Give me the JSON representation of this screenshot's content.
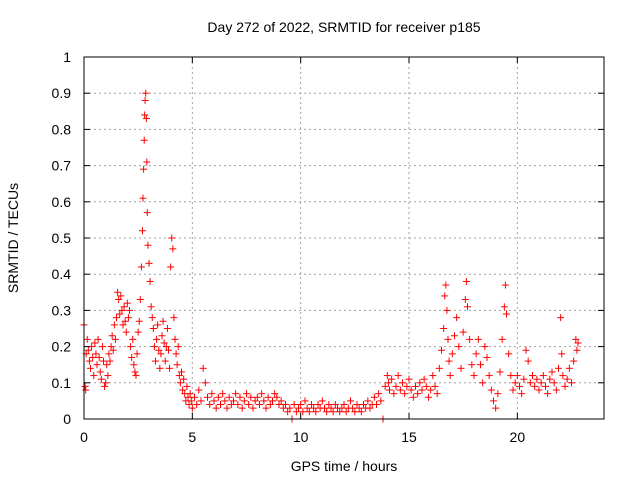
{
  "chart_data": {
    "type": "scatter",
    "title": "Day 272 of 2022, SRMTID for receiver p185",
    "xlabel": "GPS time / hours",
    "ylabel": "SRMTID / TECUs",
    "xlim": [
      0,
      24
    ],
    "ylim": [
      0,
      1
    ],
    "xticks": [
      0,
      5,
      10,
      15,
      20
    ],
    "xtick_labels": [
      "0",
      "5",
      "10",
      "15",
      "20"
    ],
    "yticks": [
      0,
      0.1,
      0.2,
      0.3,
      0.4,
      0.5,
      0.6,
      0.7,
      0.8,
      0.9,
      1
    ],
    "ytick_labels": [
      "0",
      "0.1",
      "0.2",
      "0.3",
      "0.4",
      "0.5",
      "0.6",
      "0.7",
      "0.8",
      "0.9",
      "1"
    ],
    "grid": true,
    "marker": "plus",
    "color": "#ff0000",
    "series": [
      {
        "name": "SRMTID",
        "points": [
          [
            0.0,
            0.26
          ],
          [
            0.05,
            0.09
          ],
          [
            0.08,
            0.08
          ],
          [
            0.1,
            0.18
          ],
          [
            0.15,
            0.22
          ],
          [
            0.2,
            0.19
          ],
          [
            0.25,
            0.16
          ],
          [
            0.3,
            0.14
          ],
          [
            0.35,
            0.2
          ],
          [
            0.4,
            0.17
          ],
          [
            0.45,
            0.12
          ],
          [
            0.5,
            0.21
          ],
          [
            0.55,
            0.18
          ],
          [
            0.6,
            0.15
          ],
          [
            0.65,
            0.22
          ],
          [
            0.7,
            0.17
          ],
          [
            0.75,
            0.13
          ],
          [
            0.8,
            0.11
          ],
          [
            0.85,
            0.2
          ],
          [
            0.9,
            0.16
          ],
          [
            0.95,
            0.09
          ],
          [
            1.0,
            0.1
          ],
          [
            1.05,
            0.15
          ],
          [
            1.1,
            0.12
          ],
          [
            1.15,
            0.18
          ],
          [
            1.2,
            0.16
          ],
          [
            1.25,
            0.2
          ],
          [
            1.3,
            0.23
          ],
          [
            1.35,
            0.19
          ],
          [
            1.4,
            0.26
          ],
          [
            1.45,
            0.22
          ],
          [
            1.5,
            0.28
          ],
          [
            1.55,
            0.35
          ],
          [
            1.6,
            0.33
          ],
          [
            1.65,
            0.29
          ],
          [
            1.7,
            0.34
          ],
          [
            1.75,
            0.3
          ],
          [
            1.8,
            0.26
          ],
          [
            1.85,
            0.31
          ],
          [
            1.9,
            0.27
          ],
          [
            1.95,
            0.24
          ],
          [
            2.0,
            0.32
          ],
          [
            2.05,
            0.28
          ],
          [
            2.1,
            0.3
          ],
          [
            2.15,
            0.2
          ],
          [
            2.2,
            0.17
          ],
          [
            2.25,
            0.22
          ],
          [
            2.3,
            0.15
          ],
          [
            2.35,
            0.13
          ],
          [
            2.4,
            0.12
          ],
          [
            2.45,
            0.18
          ],
          [
            2.5,
            0.24
          ],
          [
            2.55,
            0.27
          ],
          [
            2.6,
            0.33
          ],
          [
            2.65,
            0.42
          ],
          [
            2.7,
            0.52
          ],
          [
            2.72,
            0.61
          ],
          [
            2.75,
            0.69
          ],
          [
            2.78,
            0.77
          ],
          [
            2.8,
            0.84
          ],
          [
            2.82,
            0.88
          ],
          [
            2.85,
            0.9
          ],
          [
            2.88,
            0.83
          ],
          [
            2.9,
            0.71
          ],
          [
            2.92,
            0.57
          ],
          [
            2.95,
            0.48
          ],
          [
            3.0,
            0.43
          ],
          [
            3.05,
            0.38
          ],
          [
            3.1,
            0.31
          ],
          [
            3.15,
            0.28
          ],
          [
            3.2,
            0.25
          ],
          [
            3.25,
            0.2
          ],
          [
            3.3,
            0.16
          ],
          [
            3.35,
            0.22
          ],
          [
            3.4,
            0.26
          ],
          [
            3.45,
            0.19
          ],
          [
            3.5,
            0.14
          ],
          [
            3.55,
            0.18
          ],
          [
            3.6,
            0.23
          ],
          [
            3.65,
            0.27
          ],
          [
            3.7,
            0.21
          ],
          [
            3.75,
            0.16
          ],
          [
            3.8,
            0.2
          ],
          [
            3.85,
            0.25
          ],
          [
            3.9,
            0.19
          ],
          [
            3.95,
            0.14
          ],
          [
            4.0,
            0.42
          ],
          [
            4.05,
            0.5
          ],
          [
            4.1,
            0.47
          ],
          [
            4.15,
            0.28
          ],
          [
            4.2,
            0.22
          ],
          [
            4.25,
            0.18
          ],
          [
            4.3,
            0.15
          ],
          [
            4.35,
            0.2
          ],
          [
            4.4,
            0.12
          ],
          [
            4.45,
            0.1
          ],
          [
            4.5,
            0.13
          ],
          [
            4.55,
            0.08
          ],
          [
            4.6,
            0.11
          ],
          [
            4.65,
            0.07
          ],
          [
            4.7,
            0.05
          ],
          [
            4.75,
            0.09
          ],
          [
            4.8,
            0.06
          ],
          [
            4.85,
            0.04
          ],
          [
            4.9,
            0.07
          ],
          [
            4.95,
            0.05
          ],
          [
            5.0,
            0.03
          ],
          [
            5.1,
            0.06
          ],
          [
            5.2,
            0.04
          ],
          [
            5.3,
            0.08
          ],
          [
            5.4,
            0.05
          ],
          [
            5.5,
            0.14
          ],
          [
            5.6,
            0.1
          ],
          [
            5.7,
            0.06
          ],
          [
            5.8,
            0.04
          ],
          [
            5.9,
            0.07
          ],
          [
            6.0,
            0.05
          ],
          [
            6.1,
            0.03
          ],
          [
            6.2,
            0.06
          ],
          [
            6.3,
            0.04
          ],
          [
            6.4,
            0.07
          ],
          [
            6.5,
            0.05
          ],
          [
            6.6,
            0.03
          ],
          [
            6.7,
            0.06
          ],
          [
            6.8,
            0.04
          ],
          [
            6.9,
            0.05
          ],
          [
            7.0,
            0.07
          ],
          [
            7.1,
            0.04
          ],
          [
            7.2,
            0.06
          ],
          [
            7.3,
            0.03
          ],
          [
            7.4,
            0.05
          ],
          [
            7.5,
            0.07
          ],
          [
            7.6,
            0.04
          ],
          [
            7.7,
            0.06
          ],
          [
            7.8,
            0.03
          ],
          [
            7.9,
            0.05
          ],
          [
            8.0,
            0.06
          ],
          [
            8.1,
            0.04
          ],
          [
            8.2,
            0.07
          ],
          [
            8.3,
            0.05
          ],
          [
            8.4,
            0.03
          ],
          [
            8.5,
            0.06
          ],
          [
            8.6,
            0.04
          ],
          [
            8.7,
            0.05
          ],
          [
            8.8,
            0.07
          ],
          [
            8.9,
            0.06
          ],
          [
            9.0,
            0.04
          ],
          [
            9.1,
            0.05
          ],
          [
            9.2,
            0.03
          ],
          [
            9.3,
            0.04
          ],
          [
            9.4,
            0.02
          ],
          [
            9.5,
            0.03
          ],
          [
            9.6,
            0.0
          ],
          [
            9.7,
            0.04
          ],
          [
            9.8,
            0.02
          ],
          [
            9.9,
            0.03
          ],
          [
            10.0,
            0.04
          ],
          [
            10.1,
            0.02
          ],
          [
            10.2,
            0.05
          ],
          [
            10.3,
            0.03
          ],
          [
            10.4,
            0.02
          ],
          [
            10.5,
            0.04
          ],
          [
            10.6,
            0.03
          ],
          [
            10.7,
            0.02
          ],
          [
            10.8,
            0.04
          ],
          [
            10.9,
            0.03
          ],
          [
            11.0,
            0.05
          ],
          [
            11.1,
            0.03
          ],
          [
            11.2,
            0.02
          ],
          [
            11.3,
            0.04
          ],
          [
            11.4,
            0.03
          ],
          [
            11.5,
            0.02
          ],
          [
            11.6,
            0.04
          ],
          [
            11.7,
            0.03
          ],
          [
            11.8,
            0.02
          ],
          [
            11.9,
            0.03
          ],
          [
            12.0,
            0.04
          ],
          [
            12.1,
            0.02
          ],
          [
            12.2,
            0.03
          ],
          [
            12.3,
            0.05
          ],
          [
            12.4,
            0.03
          ],
          [
            12.5,
            0.02
          ],
          [
            12.6,
            0.04
          ],
          [
            12.7,
            0.03
          ],
          [
            12.8,
            0.02
          ],
          [
            12.9,
            0.04
          ],
          [
            13.0,
            0.03
          ],
          [
            13.1,
            0.05
          ],
          [
            13.2,
            0.03
          ],
          [
            13.3,
            0.04
          ],
          [
            13.4,
            0.06
          ],
          [
            13.5,
            0.04
          ],
          [
            13.6,
            0.07
          ],
          [
            13.7,
            0.05
          ],
          [
            13.8,
            0.0
          ],
          [
            13.9,
            0.09
          ],
          [
            14.0,
            0.12
          ],
          [
            14.05,
            0.1
          ],
          [
            14.1,
            0.08
          ],
          [
            14.2,
            0.11
          ],
          [
            14.3,
            0.07
          ],
          [
            14.4,
            0.09
          ],
          [
            14.5,
            0.12
          ],
          [
            14.6,
            0.08
          ],
          [
            14.7,
            0.1
          ],
          [
            14.8,
            0.07
          ],
          [
            14.9,
            0.09
          ],
          [
            15.0,
            0.11
          ],
          [
            15.1,
            0.08
          ],
          [
            15.2,
            0.06
          ],
          [
            15.3,
            0.09
          ],
          [
            15.4,
            0.07
          ],
          [
            15.5,
            0.1
          ],
          [
            15.6,
            0.08
          ],
          [
            15.7,
            0.11
          ],
          [
            15.8,
            0.09
          ],
          [
            15.9,
            0.06
          ],
          [
            16.0,
            0.08
          ],
          [
            16.1,
            0.12
          ],
          [
            16.2,
            0.09
          ],
          [
            16.3,
            0.07
          ],
          [
            16.4,
            0.14
          ],
          [
            16.5,
            0.19
          ],
          [
            16.6,
            0.25
          ],
          [
            16.65,
            0.34
          ],
          [
            16.7,
            0.37
          ],
          [
            16.75,
            0.3
          ],
          [
            16.8,
            0.22
          ],
          [
            16.85,
            0.16
          ],
          [
            16.9,
            0.12
          ],
          [
            17.0,
            0.18
          ],
          [
            17.1,
            0.23
          ],
          [
            17.2,
            0.28
          ],
          [
            17.3,
            0.2
          ],
          [
            17.4,
            0.14
          ],
          [
            17.5,
            0.24
          ],
          [
            17.6,
            0.33
          ],
          [
            17.65,
            0.38
          ],
          [
            17.7,
            0.31
          ],
          [
            17.8,
            0.22
          ],
          [
            17.9,
            0.15
          ],
          [
            18.0,
            0.12
          ],
          [
            18.1,
            0.18
          ],
          [
            18.2,
            0.22
          ],
          [
            18.3,
            0.15
          ],
          [
            18.4,
            0.1
          ],
          [
            18.5,
            0.2
          ],
          [
            18.6,
            0.17
          ],
          [
            18.7,
            0.12
          ],
          [
            18.8,
            0.08
          ],
          [
            18.9,
            0.05
          ],
          [
            19.0,
            0.03
          ],
          [
            19.1,
            0.07
          ],
          [
            19.2,
            0.13
          ],
          [
            19.3,
            0.22
          ],
          [
            19.4,
            0.31
          ],
          [
            19.45,
            0.37
          ],
          [
            19.5,
            0.29
          ],
          [
            19.6,
            0.18
          ],
          [
            19.7,
            0.12
          ],
          [
            19.8,
            0.08
          ],
          [
            19.9,
            0.1
          ],
          [
            20.0,
            0.12
          ],
          [
            20.1,
            0.09
          ],
          [
            20.2,
            0.07
          ],
          [
            20.3,
            0.11
          ],
          [
            20.4,
            0.19
          ],
          [
            20.5,
            0.16
          ],
          [
            20.6,
            0.1
          ],
          [
            20.7,
            0.12
          ],
          [
            20.8,
            0.09
          ],
          [
            20.9,
            0.11
          ],
          [
            21.0,
            0.08
          ],
          [
            21.1,
            0.1
          ],
          [
            21.2,
            0.12
          ],
          [
            21.3,
            0.09
          ],
          [
            21.4,
            0.07
          ],
          [
            21.5,
            0.11
          ],
          [
            21.6,
            0.13
          ],
          [
            21.7,
            0.1
          ],
          [
            21.8,
            0.08
          ],
          [
            21.9,
            0.14
          ],
          [
            22.0,
            0.28
          ],
          [
            22.05,
            0.18
          ],
          [
            22.1,
            0.12
          ],
          [
            22.2,
            0.09
          ],
          [
            22.3,
            0.11
          ],
          [
            22.4,
            0.14
          ],
          [
            22.5,
            0.1
          ],
          [
            22.6,
            0.16
          ],
          [
            22.7,
            0.22
          ],
          [
            22.75,
            0.19
          ],
          [
            22.8,
            0.21
          ]
        ]
      }
    ]
  }
}
